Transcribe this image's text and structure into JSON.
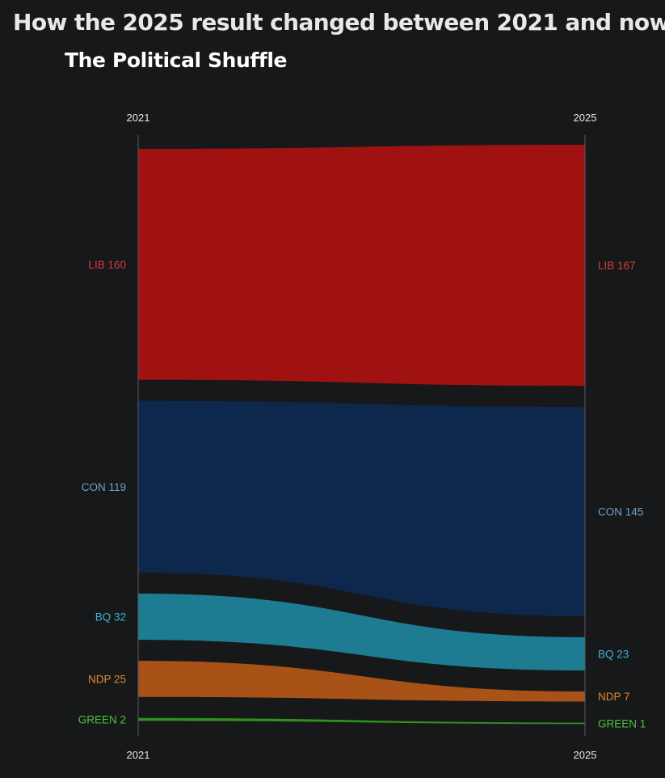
{
  "title": "How the 2025 result changed between 2021 and now",
  "subtitle": "The Political Shuffle",
  "chart_data": {
    "type": "area",
    "x": [
      "2021",
      "2025"
    ],
    "series": [
      {
        "name": "LIB",
        "values": [
          160,
          167
        ],
        "color": "#a01212",
        "label_color": "#d93a3a",
        "labels": [
          "LIB 160",
          "LIB 167"
        ]
      },
      {
        "name": "CON",
        "values": [
          119,
          145
        ],
        "color": "#0e274d",
        "label_color": "#6e9fd0",
        "labels": [
          "CON 119",
          "CON 145"
        ]
      },
      {
        "name": "BQ",
        "values": [
          32,
          23
        ],
        "color": "#1e7c92",
        "label_color": "#3bb3d0",
        "labels": [
          "BQ 32",
          "BQ 23"
        ]
      },
      {
        "name": "NDP",
        "values": [
          25,
          7
        ],
        "color": "#a85218",
        "label_color": "#e2862f",
        "labels": [
          "NDP 25",
          "NDP 7"
        ]
      },
      {
        "name": "GREEN",
        "values": [
          2,
          1
        ],
        "color": "#2f8f1f",
        "label_color": "#4cc23a",
        "labels": [
          "GREEN 2",
          "GREEN 1"
        ]
      }
    ]
  }
}
